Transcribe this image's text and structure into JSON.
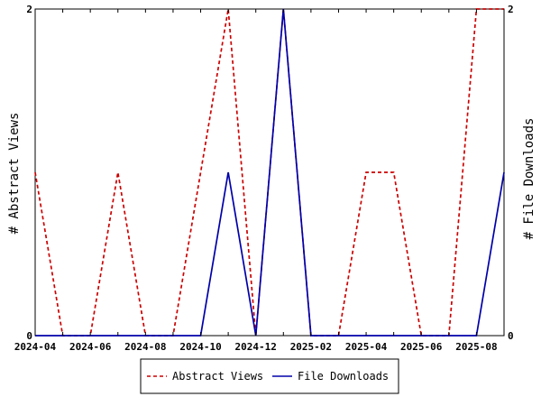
{
  "chart_data": {
    "type": "line",
    "x": [
      "2024-04",
      "2024-05",
      "2024-06",
      "2024-07",
      "2024-08",
      "2024-09",
      "2024-10",
      "2024-11",
      "2024-12",
      "2025-01",
      "2025-02",
      "2025-03",
      "2025-04",
      "2025-05",
      "2025-06",
      "2025-07",
      "2025-08",
      "2025-09"
    ],
    "x_tick_labels": [
      "2024-04",
      "2024-06",
      "2024-08",
      "2024-10",
      "2024-12",
      "2025-02",
      "2025-04",
      "2025-06",
      "2025-08"
    ],
    "series": [
      {
        "name": "Abstract Views",
        "axis": "left",
        "color": "#cc0000",
        "style": "dashed",
        "values": [
          1,
          0,
          0,
          1,
          0,
          0,
          1,
          2,
          0,
          2,
          0,
          0,
          1,
          1,
          0,
          0,
          2,
          2
        ]
      },
      {
        "name": "File Downloads",
        "axis": "right",
        "color": "#0000aa",
        "style": "solid",
        "values": [
          0,
          0,
          0,
          0,
          0,
          0,
          0,
          1,
          0,
          2,
          0,
          0,
          0,
          0,
          0,
          0,
          0,
          1
        ]
      }
    ],
    "ylabel_left": "# Abstract Views",
    "ylabel_right": "# File Downloads",
    "ylim_left": [
      0,
      2
    ],
    "ylim_right": [
      0,
      2
    ],
    "y_ticks_left": [
      "0",
      "2"
    ],
    "y_ticks_right": [
      "0",
      "2"
    ],
    "grid": false,
    "legend_placement": "bottom-center"
  }
}
